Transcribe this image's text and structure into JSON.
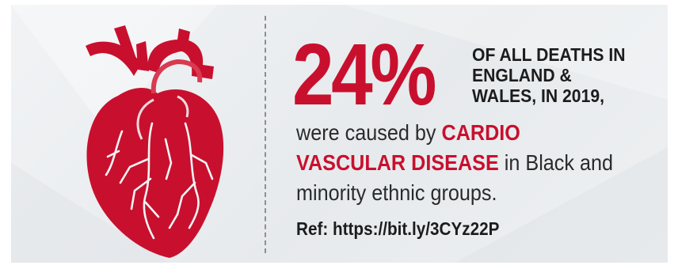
{
  "stat": {
    "value": "24%"
  },
  "headline": {
    "line1": "OF ALL DEATHS IN",
    "line2": "ENGLAND &",
    "line3": "WALES, IN 2019,"
  },
  "body": {
    "text_before": "were caused by",
    "highlight": "CARDIO VASCULAR DISEASE",
    "text_after": "in Black and minority ethnic groups."
  },
  "reference": {
    "text": "Ref: https://bit.ly/3CYz22P"
  },
  "colors": {
    "accent": "#c8102e",
    "heart": "#c8102e",
    "text_dark": "#1c1c1c",
    "background": "#eceef0"
  },
  "icons": {
    "heart": "anatomical-heart-icon"
  }
}
